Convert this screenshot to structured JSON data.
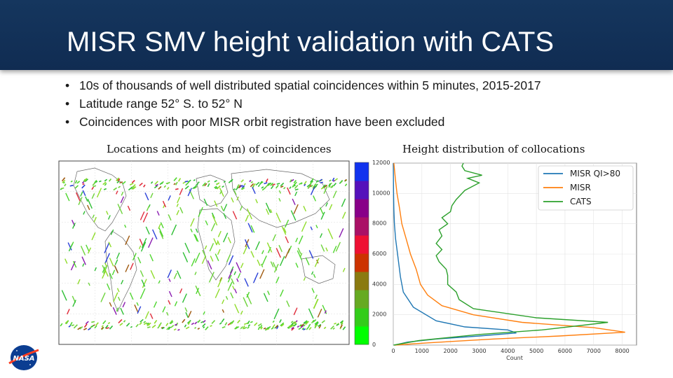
{
  "slide": {
    "title": "MISR SMV height validation with CATS",
    "bullets": [
      "10s of thousands of well distributed spatial coincidences within 5 minutes, 2015-2017",
      "Latitude range 52° S. to 52° N",
      "Coincidences with poor MISR orbit registration have been excluded"
    ],
    "bullet_symbol": "•",
    "logo_text": "NASA"
  },
  "map": {
    "caption": "Locations and heights (m) of coincidences",
    "colorbar": {
      "ticks": [
        "0",
        "2000",
        "4000",
        "6000",
        "8000",
        "10000",
        "12000"
      ],
      "colors": [
        "#00ff00",
        "#33cc1a",
        "#66aa22",
        "#8a7a10",
        "#cc3300",
        "#ee1133",
        "#aa1166",
        "#880088",
        "#5511bb",
        "#1133ee"
      ]
    },
    "band_colors": [
      "#4fd62f",
      "#6cd33a",
      "#2fbf35",
      "#8fdc2a",
      "#e02b3a",
      "#8a1bb0",
      "#2a40d8",
      "#a05a10"
    ]
  },
  "chart_data": {
    "type": "line",
    "title": "Height distribution of collocations",
    "xlabel": "Count",
    "ylabel": "",
    "xlim": [
      0,
      8500
    ],
    "ylim": [
      0,
      12000
    ],
    "xticks": [
      0,
      1000,
      2000,
      3000,
      4000,
      5000,
      6000,
      7000,
      8000
    ],
    "yticks": [
      0,
      2000,
      4000,
      6000,
      8000,
      10000,
      12000
    ],
    "legend_position": "top-right",
    "series": [
      {
        "name": "MISR QI>80",
        "color": "#1f77b4",
        "points": [
          [
            40,
            0
          ],
          [
            500,
            200
          ],
          [
            1500,
            400
          ],
          [
            3000,
            600
          ],
          [
            4300,
            800
          ],
          [
            4000,
            1000
          ],
          [
            2500,
            1200
          ],
          [
            1500,
            1600
          ],
          [
            700,
            2500
          ],
          [
            350,
            3500
          ],
          [
            250,
            4500
          ],
          [
            150,
            6000
          ],
          [
            80,
            7000
          ],
          [
            40,
            8000
          ],
          [
            20,
            9000
          ],
          [
            10,
            10000
          ],
          [
            5,
            11000
          ],
          [
            0,
            12000
          ]
        ]
      },
      {
        "name": "MISR",
        "color": "#ff7f0e",
        "points": [
          [
            50,
            0
          ],
          [
            1200,
            150
          ],
          [
            3500,
            400
          ],
          [
            5800,
            600
          ],
          [
            8100,
            850
          ],
          [
            7000,
            1150
          ],
          [
            4500,
            1500
          ],
          [
            2800,
            2000
          ],
          [
            1700,
            2600
          ],
          [
            1200,
            3300
          ],
          [
            950,
            4000
          ],
          [
            800,
            5000
          ],
          [
            600,
            6000
          ],
          [
            450,
            7000
          ],
          [
            300,
            8000
          ],
          [
            220,
            9000
          ],
          [
            130,
            10000
          ],
          [
            70,
            11000
          ],
          [
            20,
            12000
          ]
        ]
      },
      {
        "name": "CATS",
        "color": "#2ca02c",
        "points": [
          [
            10,
            0
          ],
          [
            900,
            300
          ],
          [
            3000,
            700
          ],
          [
            5200,
            1000
          ],
          [
            7500,
            1500
          ],
          [
            5000,
            1800
          ],
          [
            2800,
            2400
          ],
          [
            2300,
            3000
          ],
          [
            2200,
            3500
          ],
          [
            1900,
            4000
          ],
          [
            1900,
            4600
          ],
          [
            1850,
            5000
          ],
          [
            1600,
            5500
          ],
          [
            1500,
            5900
          ],
          [
            1700,
            6300
          ],
          [
            1500,
            6700
          ],
          [
            1700,
            7200
          ],
          [
            1600,
            7600
          ],
          [
            1900,
            8000
          ],
          [
            1700,
            8400
          ],
          [
            2000,
            8800
          ],
          [
            2050,
            9200
          ],
          [
            2200,
            9600
          ],
          [
            2500,
            10200
          ],
          [
            3000,
            10700
          ],
          [
            2600,
            11000
          ],
          [
            3100,
            11200
          ],
          [
            2500,
            11500
          ],
          [
            2400,
            11800
          ],
          [
            2450,
            12000
          ]
        ]
      }
    ]
  }
}
